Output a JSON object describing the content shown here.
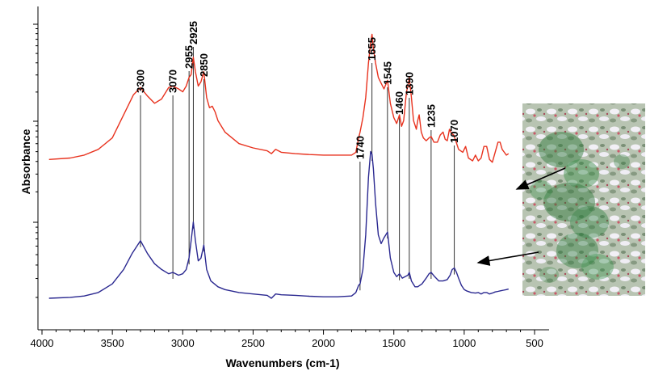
{
  "chart_data": {
    "type": "line",
    "title": "",
    "xlabel": "Wavenumbers (cm-1)",
    "ylabel": "Absorbance",
    "xlim": [
      4000,
      400
    ],
    "x_reversed": true,
    "x_ticks": [
      "4000",
      "3500",
      "3000",
      "2500",
      "2000",
      "1500",
      "1000",
      "500"
    ],
    "y_tick_labels_shown": false,
    "grid": false,
    "legend": "none",
    "series": [
      {
        "color": "#e8321e",
        "points": [
          [
            3950,
            0.165
          ],
          [
            3800,
            0.17
          ],
          [
            3700,
            0.18
          ],
          [
            3600,
            0.2
          ],
          [
            3500,
            0.24
          ],
          [
            3420,
            0.32
          ],
          [
            3350,
            0.39
          ],
          [
            3300,
            0.415
          ],
          [
            3250,
            0.385
          ],
          [
            3200,
            0.36
          ],
          [
            3150,
            0.375
          ],
          [
            3100,
            0.415
          ],
          [
            3070,
            0.42
          ],
          [
            3030,
            0.41
          ],
          [
            3000,
            0.4
          ],
          [
            2975,
            0.42
          ],
          [
            2955,
            0.45
          ],
          [
            2940,
            0.46
          ],
          [
            2925,
            0.52
          ],
          [
            2910,
            0.47
          ],
          [
            2890,
            0.42
          ],
          [
            2870,
            0.435
          ],
          [
            2850,
            0.47
          ],
          [
            2830,
            0.38
          ],
          [
            2810,
            0.345
          ],
          [
            2790,
            0.35
          ],
          [
            2770,
            0.33
          ],
          [
            2750,
            0.3
          ],
          [
            2700,
            0.26
          ],
          [
            2600,
            0.22
          ],
          [
            2500,
            0.205
          ],
          [
            2400,
            0.195
          ],
          [
            2370,
            0.185
          ],
          [
            2340,
            0.2
          ],
          [
            2300,
            0.19
          ],
          [
            2200,
            0.185
          ],
          [
            2100,
            0.182
          ],
          [
            2000,
            0.18
          ],
          [
            1900,
            0.18
          ],
          [
            1800,
            0.18
          ],
          [
            1770,
            0.19
          ],
          [
            1750,
            0.24
          ],
          [
            1740,
            0.26
          ],
          [
            1720,
            0.31
          ],
          [
            1700,
            0.38
          ],
          [
            1680,
            0.5
          ],
          [
            1665,
            0.57
          ],
          [
            1655,
            0.6
          ],
          [
            1645,
            0.55
          ],
          [
            1630,
            0.5
          ],
          [
            1610,
            0.45
          ],
          [
            1590,
            0.43
          ],
          [
            1570,
            0.41
          ],
          [
            1545,
            0.44
          ],
          [
            1525,
            0.36
          ],
          [
            1500,
            0.31
          ],
          [
            1480,
            0.29
          ],
          [
            1460,
            0.32
          ],
          [
            1445,
            0.28
          ],
          [
            1430,
            0.3
          ],
          [
            1410,
            0.4
          ],
          [
            1400,
            0.42
          ],
          [
            1390,
            0.45
          ],
          [
            1375,
            0.38
          ],
          [
            1360,
            0.3
          ],
          [
            1340,
            0.27
          ],
          [
            1330,
            0.3
          ],
          [
            1320,
            0.32
          ],
          [
            1305,
            0.26
          ],
          [
            1290,
            0.24
          ],
          [
            1270,
            0.23
          ],
          [
            1250,
            0.24
          ],
          [
            1235,
            0.245
          ],
          [
            1215,
            0.225
          ],
          [
            1190,
            0.225
          ],
          [
            1170,
            0.25
          ],
          [
            1150,
            0.26
          ],
          [
            1135,
            0.235
          ],
          [
            1120,
            0.23
          ],
          [
            1105,
            0.27
          ],
          [
            1090,
            0.255
          ],
          [
            1075,
            0.25
          ],
          [
            1060,
            0.23
          ],
          [
            1040,
            0.2
          ],
          [
            1010,
            0.19
          ],
          [
            990,
            0.21
          ],
          [
            970,
            0.17
          ],
          [
            940,
            0.16
          ],
          [
            920,
            0.18
          ],
          [
            900,
            0.16
          ],
          [
            880,
            0.17
          ],
          [
            860,
            0.21
          ],
          [
            840,
            0.21
          ],
          [
            820,
            0.165
          ],
          [
            800,
            0.155
          ],
          [
            780,
            0.19
          ],
          [
            760,
            0.225
          ],
          [
            745,
            0.225
          ],
          [
            730,
            0.2
          ],
          [
            715,
            0.19
          ],
          [
            700,
            0.18
          ],
          [
            685,
            0.185
          ]
        ]
      },
      {
        "color": "#2a2890",
        "points": [
          [
            3950,
            0.0
          ],
          [
            3800,
            0.003
          ],
          [
            3700,
            0.008
          ],
          [
            3600,
            0.02
          ],
          [
            3500,
            0.05
          ],
          [
            3420,
            0.1
          ],
          [
            3360,
            0.155
          ],
          [
            3300,
            0.2
          ],
          [
            3250,
            0.155
          ],
          [
            3200,
            0.12
          ],
          [
            3150,
            0.1
          ],
          [
            3100,
            0.085
          ],
          [
            3070,
            0.09
          ],
          [
            3030,
            0.08
          ],
          [
            3000,
            0.085
          ],
          [
            2975,
            0.1
          ],
          [
            2955,
            0.14
          ],
          [
            2940,
            0.2
          ],
          [
            2925,
            0.265
          ],
          [
            2910,
            0.2
          ],
          [
            2890,
            0.13
          ],
          [
            2870,
            0.14
          ],
          [
            2850,
            0.185
          ],
          [
            2830,
            0.1
          ],
          [
            2800,
            0.06
          ],
          [
            2750,
            0.04
          ],
          [
            2700,
            0.03
          ],
          [
            2600,
            0.02
          ],
          [
            2500,
            0.015
          ],
          [
            2400,
            0.01
          ],
          [
            2370,
            0.0
          ],
          [
            2340,
            0.015
          ],
          [
            2300,
            0.012
          ],
          [
            2200,
            0.01
          ],
          [
            2100,
            0.007
          ],
          [
            2000,
            0.005
          ],
          [
            1900,
            0.005
          ],
          [
            1800,
            0.008
          ],
          [
            1770,
            0.02
          ],
          [
            1750,
            0.045
          ],
          [
            1740,
            0.05
          ],
          [
            1720,
            0.1
          ],
          [
            1700,
            0.22
          ],
          [
            1680,
            0.42
          ],
          [
            1665,
            0.51
          ],
          [
            1655,
            0.5
          ],
          [
            1645,
            0.45
          ],
          [
            1630,
            0.33
          ],
          [
            1610,
            0.22
          ],
          [
            1590,
            0.19
          ],
          [
            1570,
            0.21
          ],
          [
            1545,
            0.23
          ],
          [
            1525,
            0.14
          ],
          [
            1500,
            0.09
          ],
          [
            1480,
            0.075
          ],
          [
            1460,
            0.085
          ],
          [
            1440,
            0.07
          ],
          [
            1420,
            0.075
          ],
          [
            1400,
            0.08
          ],
          [
            1390,
            0.09
          ],
          [
            1375,
            0.06
          ],
          [
            1350,
            0.04
          ],
          [
            1330,
            0.04
          ],
          [
            1300,
            0.05
          ],
          [
            1270,
            0.07
          ],
          [
            1250,
            0.085
          ],
          [
            1235,
            0.09
          ],
          [
            1210,
            0.075
          ],
          [
            1180,
            0.06
          ],
          [
            1150,
            0.06
          ],
          [
            1120,
            0.065
          ],
          [
            1100,
            0.08
          ],
          [
            1085,
            0.1
          ],
          [
            1070,
            0.105
          ],
          [
            1055,
            0.09
          ],
          [
            1040,
            0.07
          ],
          [
            1020,
            0.045
          ],
          [
            1000,
            0.03
          ],
          [
            980,
            0.025
          ],
          [
            950,
            0.02
          ],
          [
            920,
            0.018
          ],
          [
            900,
            0.02
          ],
          [
            880,
            0.015
          ],
          [
            860,
            0.02
          ],
          [
            840,
            0.02
          ],
          [
            820,
            0.015
          ],
          [
            800,
            0.018
          ],
          [
            780,
            0.022
          ],
          [
            760,
            0.024
          ],
          [
            740,
            0.026
          ],
          [
            720,
            0.028
          ],
          [
            700,
            0.03
          ],
          [
            685,
            0.032
          ]
        ]
      }
    ],
    "annotations": [
      {
        "label": "3300",
        "x": 3300
      },
      {
        "label": "3070",
        "x": 3070
      },
      {
        "label": "2955",
        "x": 2955
      },
      {
        "label": "2925",
        "x": 2925
      },
      {
        "label": "2850",
        "x": 2850
      },
      {
        "label": "1740",
        "x": 1740
      },
      {
        "label": "1655",
        "x": 1655
      },
      {
        "label": "1545",
        "x": 1545
      },
      {
        "label": "1460",
        "x": 1460
      },
      {
        "label": "1390",
        "x": 1390
      },
      {
        "label": "1235",
        "x": 1235
      },
      {
        "label": "1070",
        "x": 1070
      }
    ],
    "inset": "micrograph with green stained cells",
    "colors": {
      "red_trace": "#e8321e",
      "blue_trace": "#2a2890",
      "arrows": "#000000"
    }
  }
}
